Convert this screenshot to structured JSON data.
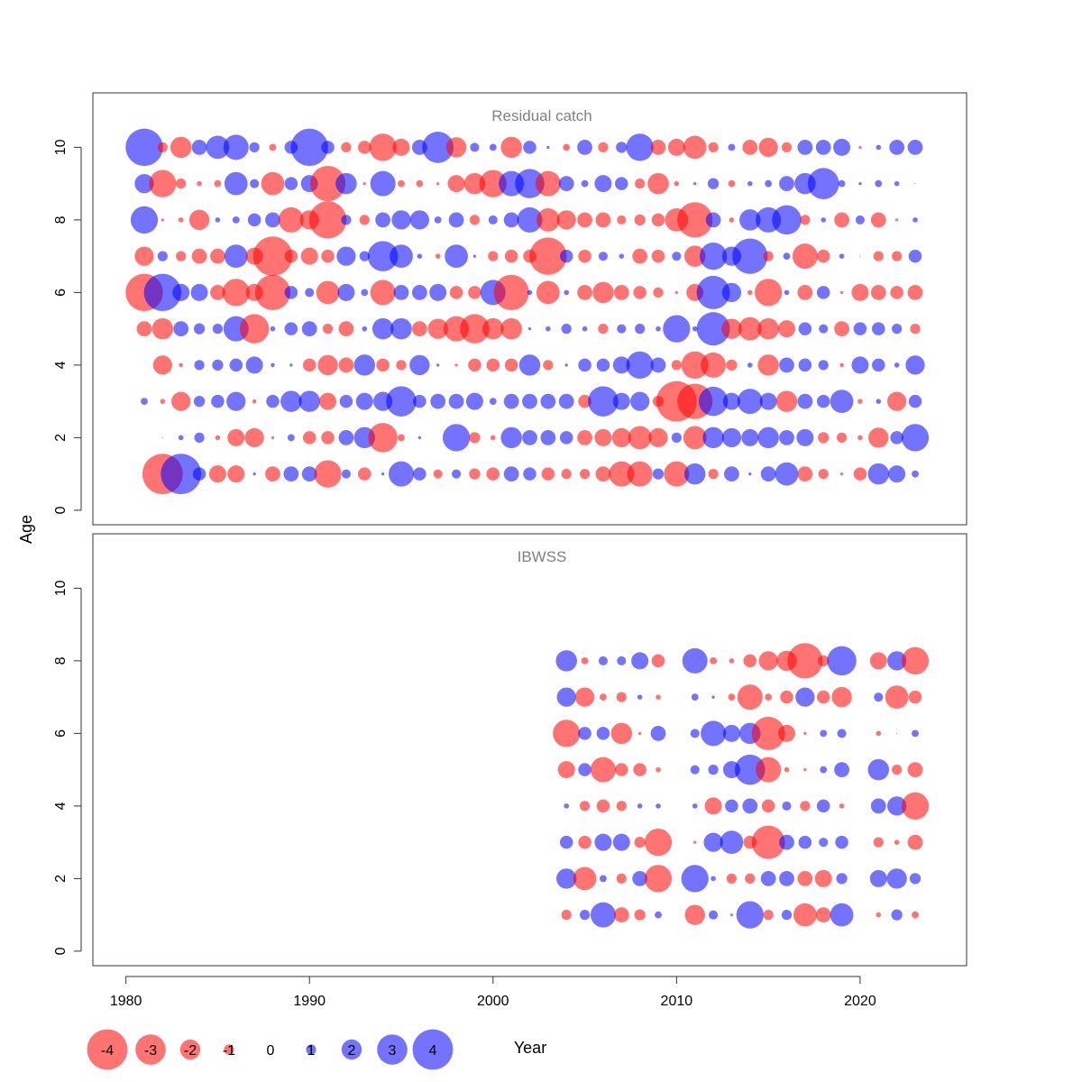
{
  "chart_data": {
    "type": "scatter",
    "subtype": "bubble-residual-plot",
    "xlabel": "Year",
    "ylabel": "Age",
    "x_ticks": [
      1980,
      1990,
      2000,
      2010,
      2020
    ],
    "y_ticks": [
      0,
      2,
      4,
      6,
      8,
      10
    ],
    "xlim": [
      1978.2,
      2025.8
    ],
    "ylim": [
      -0.4,
      11.5
    ],
    "colors": {
      "positive": "#0000ff",
      "negative": "#ff0000",
      "opacity": 0.55,
      "panel_title": "#808080"
    },
    "legend": {
      "placement": "bottom-left",
      "values": [
        -4,
        -3,
        -2,
        -1,
        0,
        1,
        2,
        3,
        4
      ],
      "labels": [
        "-4",
        "-3",
        "-2",
        "-1",
        "0",
        "1",
        "2",
        "3",
        "4"
      ]
    },
    "panels": [
      {
        "title": "Residual catch",
        "years": [
          1981,
          1982,
          1983,
          1984,
          1985,
          1986,
          1987,
          1988,
          1989,
          1990,
          1991,
          1992,
          1993,
          1994,
          1995,
          1996,
          1997,
          1998,
          1999,
          2000,
          2001,
          2002,
          2003,
          2004,
          2005,
          2006,
          2007,
          2008,
          2009,
          2010,
          2011,
          2012,
          2013,
          2014,
          2015,
          2016,
          2017,
          2018,
          2019,
          2020,
          2021,
          2022,
          2023
        ],
        "ages": [
          1,
          2,
          3,
          4,
          5,
          6,
          7,
          8,
          9,
          10
        ],
        "residuals": [
          [
            null,
            -4,
            4,
            1.3,
            -1.7,
            -1.7,
            0.3,
            -1.5,
            1.5,
            1.5,
            -2.7,
            0.9,
            -1.3,
            0.3,
            2.5,
            1.3,
            -0.9,
            0.9,
            -1.1,
            -1.3,
            1.5,
            1.3,
            -1.3,
            -1,
            -1,
            -1.5,
            -2.5,
            -2.5,
            1.1,
            -2.5,
            2.1,
            -1,
            1.5,
            0.3,
            1.5,
            2.3,
            -1.5,
            -1,
            -0.3,
            -1.3,
            2.1,
            1.7,
            0.7
          ],
          [
            null,
            -0.1,
            0.5,
            1,
            -0.5,
            -1.7,
            -1.9,
            -0.3,
            0.7,
            -1.3,
            -1.3,
            1.5,
            2.1,
            -2.9,
            -0.7,
            0.3,
            null,
            2.7,
            -1.1,
            -0.5,
            2.1,
            1.5,
            1.5,
            1.3,
            -1.5,
            -1.7,
            -1.9,
            -2.3,
            -1.9,
            1,
            -2.3,
            2.1,
            1.9,
            1.7,
            2.1,
            1.5,
            1.7,
            -1.1,
            -1,
            -0.5,
            -2,
            1.3,
            2.7
          ],
          [
            0.7,
            -0.5,
            -1.9,
            1.1,
            1.3,
            1.9,
            -0.4,
            1.3,
            2.1,
            2.1,
            -1.7,
            1.3,
            1.7,
            1.9,
            3,
            1.3,
            1.5,
            1.5,
            1.7,
            0.7,
            1.5,
            1.5,
            1.5,
            1.5,
            -1.3,
            3,
            1.7,
            1.9,
            -1.1,
            -4,
            -3.5,
            2.9,
            1.7,
            2.5,
            1.7,
            -2.1,
            1.5,
            1.3,
            2.3,
            -0.5,
            0.5,
            -1.9,
            1.3
          ],
          [
            null,
            -1.9,
            -0.4,
            1,
            1.1,
            1.3,
            1.7,
            0.4,
            0.3,
            -1.3,
            -2,
            -1.5,
            2.1,
            -1.3,
            -1,
            2,
            0.3,
            -0.3,
            -1.3,
            -1.3,
            -1.3,
            2.1,
            -1,
            0.3,
            1.3,
            1.3,
            1.7,
            2.7,
            1.5,
            -1,
            -2.7,
            -2.5,
            -1.1,
            0.5,
            -2.1,
            1.5,
            1.3,
            1,
            -0.4,
            1.7,
            1.3,
            0.5,
            1.9
          ],
          [
            -1.5,
            -2.1,
            1.5,
            1.1,
            1,
            2.5,
            -2.9,
            0.5,
            1.3,
            1.5,
            -1,
            -1.5,
            0.5,
            2.1,
            2.1,
            -1.5,
            -2,
            -2.5,
            -2.9,
            -2.1,
            -2.1,
            0.3,
            0.5,
            1,
            0.5,
            -1,
            0.9,
            1,
            0.5,
            2.7,
            0.5,
            3.3,
            -2,
            -2.3,
            -2.1,
            -1.7,
            1.3,
            0.9,
            -1.5,
            1.3,
            1.3,
            1,
            -1
          ],
          [
            -3.7,
            3.7,
            1.7,
            1.7,
            -1.5,
            -2.7,
            -1.7,
            -3.5,
            1.3,
            0.9,
            -2.3,
            1.7,
            0.7,
            -2.5,
            1.5,
            1.5,
            1.7,
            -1.3,
            -1.3,
            2.5,
            -3.5,
            0.5,
            -2.3,
            0.5,
            -1.5,
            -2.1,
            -1.5,
            -1.3,
            -1,
            -0.3,
            -1.7,
            3.3,
            1.9,
            -0.5,
            -2.7,
            0.5,
            -1.5,
            1.3,
            -0.3,
            -1.7,
            -1.5,
            -1.3,
            -1.5
          ],
          [
            -1.9,
            1,
            -1,
            -1.5,
            -1.5,
            2.3,
            -1.7,
            -3.9,
            -1.3,
            -1.7,
            -1.3,
            1.9,
            1,
            3,
            2.3,
            0.5,
            -0.5,
            2.3,
            0.3,
            -1,
            -1.3,
            -1.3,
            -3.7,
            1.3,
            -1.3,
            0.9,
            0.5,
            -1.5,
            -1.3,
            0.9,
            -2.1,
            2.7,
            1.9,
            3.5,
            -1,
            0.7,
            -2.5,
            -1.3,
            0.5,
            -0.1,
            -1,
            -1,
            1.3
          ],
          [
            2.7,
            -0.3,
            -0.5,
            -2,
            0.5,
            0.7,
            1.3,
            1.5,
            -2.5,
            -1.9,
            -3.7,
            1,
            -1,
            1.5,
            1.9,
            1.9,
            0.7,
            1.5,
            -1,
            0.9,
            1.5,
            2.5,
            -2.3,
            -1.9,
            -1.5,
            -1.5,
            -0.9,
            -1.1,
            -1.3,
            -2.3,
            -3.5,
            1.5,
            -0.5,
            2.1,
            2.5,
            2.9,
            -1,
            0.5,
            -1.5,
            0.9,
            -1.5,
            -0.3,
            0.5
          ],
          [
            1.9,
            -2.7,
            -1,
            -0.5,
            -0.7,
            2.3,
            0.9,
            -2.3,
            1.3,
            1.7,
            -3.5,
            2.1,
            -0.3,
            2.5,
            -0.7,
            -0.7,
            -0.3,
            -1.7,
            -2.1,
            -2.7,
            2.5,
            2.9,
            -2.5,
            1.5,
            0.7,
            1.7,
            1.3,
            -1,
            -2.1,
            -0.5,
            0.3,
            1.1,
            -0.7,
            0.5,
            0.7,
            1.5,
            2.1,
            3.1,
            0.7,
            0.3,
            0.7,
            0.5,
            -0.1
          ],
          [
            3.7,
            -1,
            -2.1,
            1.5,
            2.3,
            2.5,
            1,
            -0.7,
            1.3,
            3.7,
            1.3,
            -1,
            -1.3,
            -2.7,
            -1.7,
            1.5,
            3.1,
            -2,
            0.9,
            0.7,
            -2.1,
            1.3,
            0.3,
            -0.7,
            1.5,
            -1,
            1.1,
            2.7,
            -1.5,
            -1.7,
            -2.3,
            -1,
            0.7,
            -1.5,
            -1.9,
            -1,
            1.5,
            1.5,
            1.7,
            -0.3,
            0.5,
            1.5,
            1.5
          ]
        ]
      },
      {
        "title": "IBWSS",
        "years": [
          2004,
          2005,
          2006,
          2007,
          2008,
          2009,
          2010,
          2011,
          2012,
          2013,
          2014,
          2015,
          2016,
          2017,
          2018,
          2019,
          2020,
          2021,
          2022,
          2023
        ],
        "ages": [
          1,
          2,
          3,
          4,
          5,
          6,
          7,
          8
        ],
        "residuals": [
          [
            -1,
            1,
            2.5,
            -1.5,
            -1.1,
            0.7,
            null,
            -2,
            0.9,
            -0.3,
            2.7,
            -1,
            1,
            -2.3,
            -1.5,
            2.3,
            null,
            -0.5,
            1.1,
            -0.7
          ],
          [
            2,
            -2.3,
            0.7,
            -1,
            1.5,
            -2.7,
            null,
            2.7,
            0.5,
            -1,
            -1,
            1.5,
            1.5,
            -1.5,
            -1.7,
            1.1,
            null,
            1.7,
            2,
            1.1
          ],
          [
            1.3,
            -1.3,
            1.7,
            1.7,
            -1.1,
            -2.7,
            null,
            -0.3,
            1.9,
            2.3,
            -1.3,
            -3.3,
            1.5,
            1.3,
            0.9,
            1.3,
            null,
            -1,
            -0.5,
            -1.5
          ],
          [
            0.5,
            -1,
            -1.3,
            -1,
            0.5,
            0.5,
            null,
            0.5,
            -1.7,
            1.3,
            1.5,
            -1.3,
            0.9,
            -1,
            1.3,
            -0.5,
            null,
            1.5,
            1.9,
            -2.7
          ],
          [
            -1.7,
            1.3,
            -2.5,
            -1.3,
            -1.3,
            -0.5,
            null,
            0.9,
            1,
            1.7,
            3,
            -2.5,
            -0.5,
            -0.3,
            0.7,
            1.5,
            null,
            2.1,
            -1,
            -1.5
          ],
          [
            -2.7,
            1.3,
            1.3,
            -2.1,
            -0.3,
            1.5,
            null,
            0.9,
            2.5,
            1.7,
            2.1,
            -3.3,
            -1.7,
            -0.3,
            0.7,
            0.9,
            null,
            -0.5,
            -0.1,
            0.7
          ],
          [
            1.9,
            -1.9,
            -0.7,
            -1,
            0.5,
            -0.5,
            null,
            0.7,
            0.3,
            -0.7,
            -2.5,
            -0.7,
            -1.3,
            1.9,
            -1.3,
            -2,
            null,
            0.9,
            -2.3,
            -1.3
          ],
          [
            2.1,
            -0.7,
            0.9,
            0.9,
            1.7,
            -1.3,
            null,
            2.5,
            -0.7,
            -0.5,
            -1.3,
            -1.9,
            -2,
            -3.5,
            -1.1,
            2.9,
            null,
            -1.7,
            1.9,
            -2.7
          ]
        ]
      }
    ]
  }
}
